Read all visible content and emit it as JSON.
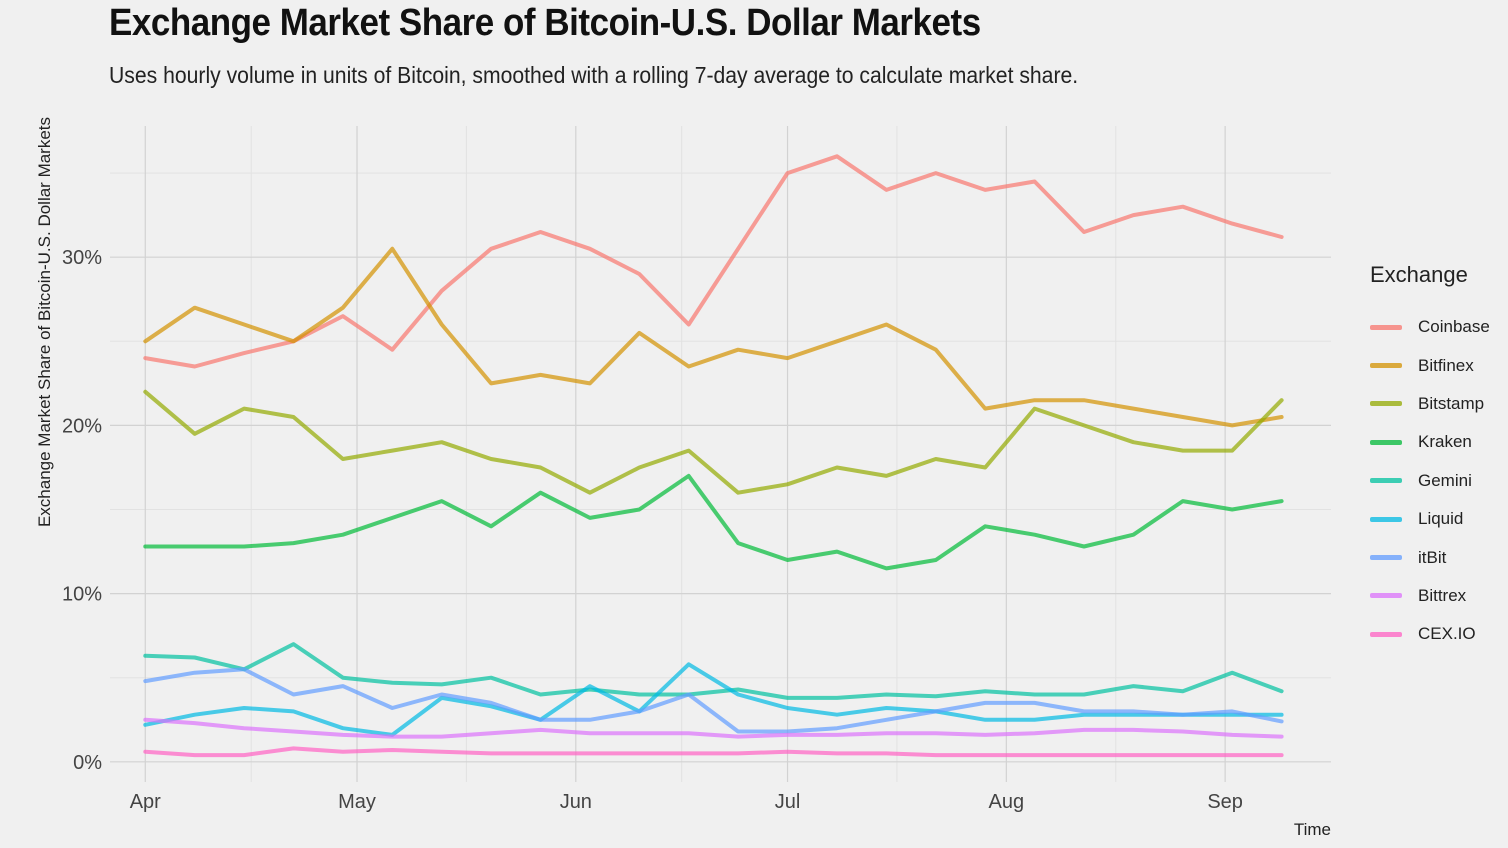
{
  "title": "Exchange Market Share of Bitcoin-U.S. Dollar Markets",
  "subtitle": "Uses hourly volume in units of Bitcoin, smoothed with a rolling 7-day average to calculate market share.",
  "chart_data": {
    "type": "line",
    "title": "Exchange Market Share of Bitcoin-U.S. Dollar Markets",
    "subtitle": "Uses hourly volume in units of Bitcoin, smoothed with a rolling 7-day average to calculate market share.",
    "xlabel": "Time",
    "ylabel": "Exchange Market Share of Bitcoin-U.S. Dollar Markets",
    "x_tick_labels": [
      "Apr",
      "May",
      "Jun",
      "Jul",
      "Aug",
      "Sep"
    ],
    "x_tick_dates": [
      "Apr 1",
      "May 1",
      "Jun 1",
      "Jul 1",
      "Aug 1",
      "Sep 1"
    ],
    "y_ticks": [
      0,
      10,
      20,
      30
    ],
    "y_tick_labels": [
      "0%",
      "10%",
      "20%",
      "30%"
    ],
    "xlim": [
      "Mar 27",
      "Sep 16"
    ],
    "ylim": [
      -1.2,
      37.8
    ],
    "grid": true,
    "legend_title": "Exchange",
    "legend_position": "right",
    "x": [
      "Apr 1",
      "Apr 8",
      "Apr 15",
      "Apr 22",
      "Apr 29",
      "May 6",
      "May 13",
      "May 20",
      "May 27",
      "Jun 3",
      "Jun 10",
      "Jun 17",
      "Jun 24",
      "Jul 1",
      "Jul 8",
      "Jul 15",
      "Jul 22",
      "Jul 29",
      "Aug 5",
      "Aug 12",
      "Aug 19",
      "Aug 26",
      "Sep 2",
      "Sep 9"
    ],
    "series": [
      {
        "name": "Coinbase",
        "color": "#F8766D",
        "values": [
          24.0,
          23.5,
          24.3,
          25.0,
          26.5,
          24.5,
          28.0,
          30.5,
          31.5,
          30.5,
          29.0,
          26.0,
          30.5,
          35.0,
          36.0,
          34.0,
          35.0,
          34.0,
          34.5,
          31.5,
          32.5,
          33.0,
          32.0,
          31.2
        ]
      },
      {
        "name": "Bitfinex",
        "color": "#D39200",
        "values": [
          25.0,
          27.0,
          26.0,
          25.0,
          27.0,
          30.5,
          26.0,
          22.5,
          23.0,
          22.5,
          25.5,
          23.5,
          24.5,
          24.0,
          25.0,
          26.0,
          24.5,
          21.0,
          21.5,
          21.5,
          21.0,
          20.5,
          20.0,
          20.5
        ]
      },
      {
        "name": "Bitstamp",
        "color": "#93AA00",
        "values": [
          22.0,
          19.5,
          21.0,
          20.5,
          18.0,
          18.5,
          19.0,
          18.0,
          17.5,
          16.0,
          17.5,
          18.5,
          16.0,
          16.5,
          17.5,
          17.0,
          18.0,
          17.5,
          21.0,
          20.0,
          19.0,
          18.5,
          18.5,
          21.5
        ]
      },
      {
        "name": "Kraken",
        "color": "#00BA38",
        "values": [
          12.8,
          12.8,
          12.8,
          13.0,
          13.5,
          14.5,
          15.5,
          14.0,
          16.0,
          14.5,
          15.0,
          17.0,
          13.0,
          12.0,
          12.5,
          11.5,
          12.0,
          14.0,
          13.5,
          12.8,
          13.5,
          15.5,
          15.0,
          15.5
        ]
      },
      {
        "name": "Gemini",
        "color": "#00C19F",
        "values": [
          6.3,
          6.2,
          5.5,
          7.0,
          5.0,
          4.7,
          4.6,
          5.0,
          4.0,
          4.3,
          4.0,
          4.0,
          4.3,
          3.8,
          3.8,
          4.0,
          3.9,
          4.2,
          4.0,
          4.0,
          4.5,
          4.2,
          5.3,
          4.2
        ]
      },
      {
        "name": "Liquid",
        "color": "#00B9E3",
        "values": [
          2.2,
          2.8,
          3.2,
          3.0,
          2.0,
          1.6,
          3.8,
          3.3,
          2.5,
          4.5,
          3.0,
          5.8,
          4.0,
          3.2,
          2.8,
          3.2,
          3.0,
          2.5,
          2.5,
          2.8,
          2.8,
          2.8,
          2.8,
          2.8
        ]
      },
      {
        "name": "itBit",
        "color": "#619CFF",
        "values": [
          4.8,
          5.3,
          5.5,
          4.0,
          4.5,
          3.2,
          4.0,
          3.5,
          2.5,
          2.5,
          3.0,
          4.0,
          1.8,
          1.8,
          2.0,
          2.5,
          3.0,
          3.5,
          3.5,
          3.0,
          3.0,
          2.8,
          3.0,
          2.4
        ]
      },
      {
        "name": "Bittrex",
        "color": "#DB72FB",
        "values": [
          2.5,
          2.3,
          2.0,
          1.8,
          1.6,
          1.5,
          1.5,
          1.7,
          1.9,
          1.7,
          1.7,
          1.7,
          1.5,
          1.6,
          1.6,
          1.7,
          1.7,
          1.6,
          1.7,
          1.9,
          1.9,
          1.8,
          1.6,
          1.5
        ]
      },
      {
        "name": "CEX.IO",
        "color": "#FF61C3",
        "values": [
          0.6,
          0.4,
          0.4,
          0.8,
          0.6,
          0.7,
          0.6,
          0.5,
          0.5,
          0.5,
          0.5,
          0.5,
          0.5,
          0.6,
          0.5,
          0.5,
          0.4,
          0.4,
          0.4,
          0.4,
          0.4,
          0.4,
          0.4,
          0.4
        ]
      }
    ]
  }
}
